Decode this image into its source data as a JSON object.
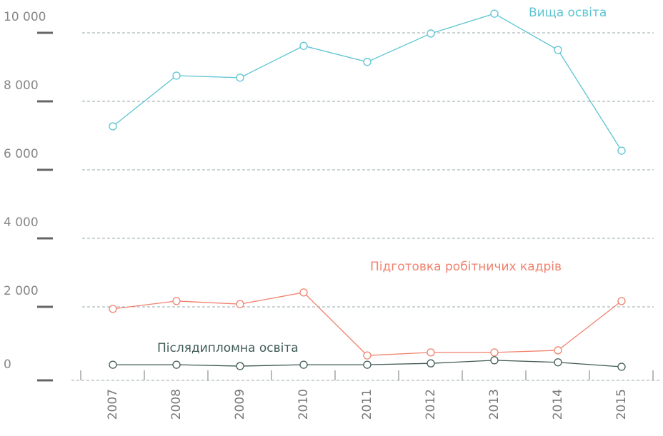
{
  "chart_data": {
    "type": "line",
    "categories": [
      "2007",
      "2008",
      "2009",
      "2010",
      "2011",
      "2012",
      "2013",
      "2014",
      "2015"
    ],
    "series": [
      {
        "name": "Вища освіта",
        "color": "#5bc4d1",
        "values": [
          7270,
          8750,
          8690,
          9620,
          9150,
          9980,
          10560,
          9500,
          6560
        ]
      },
      {
        "name": "Підготовка робітничих кадрів",
        "color": "#f0826e",
        "values": [
          1940,
          2170,
          2080,
          2420,
          580,
          670,
          670,
          730,
          2170
        ]
      },
      {
        "name": "Післядипломна освіта",
        "color": "#3f5a55",
        "values": [
          310,
          310,
          270,
          310,
          310,
          350,
          440,
          380,
          250
        ]
      }
    ],
    "ylim": [
      0,
      10000
    ],
    "yticks": [
      0,
      {
        "value": 2000,
        "label": "2 000"
      },
      {
        "value": 4000,
        "label": "4 000"
      },
      {
        "value": 6000,
        "label": "6 000"
      },
      {
        "value": 8000,
        "label": "8 000"
      },
      {
        "value": 10000,
        "label": "10 000"
      }
    ],
    "grid": true
  }
}
